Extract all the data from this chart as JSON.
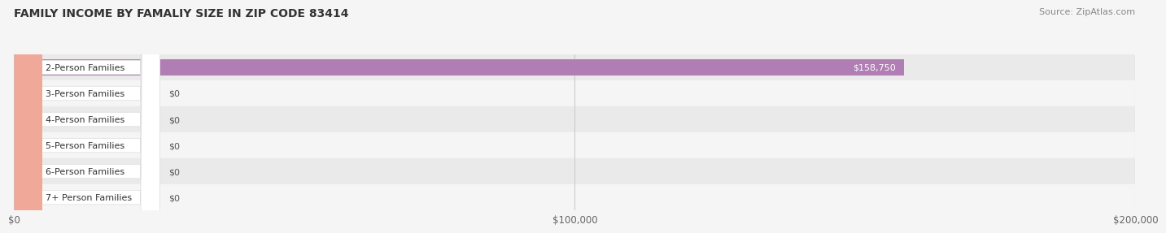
{
  "title": "FAMILY INCOME BY FAMALIY SIZE IN ZIP CODE 83414",
  "source": "Source: ZipAtlas.com",
  "categories": [
    "2-Person Families",
    "3-Person Families",
    "4-Person Families",
    "5-Person Families",
    "6-Person Families",
    "7+ Person Families"
  ],
  "values": [
    158750,
    0,
    0,
    0,
    0,
    0
  ],
  "bar_colors": [
    "#b07db5",
    "#6ec5c0",
    "#a8a8d8",
    "#f4a0b5",
    "#f5c98a",
    "#f0a898"
  ],
  "xlim": [
    0,
    200000
  ],
  "xticks": [
    0,
    100000,
    200000
  ],
  "xtick_labels": [
    "$0",
    "$100,000",
    "$200,000"
  ],
  "bar_height": 0.62,
  "background_color": "#f5f5f5",
  "title_fontsize": 10,
  "label_fontsize": 8,
  "value_fontsize": 8,
  "source_fontsize": 8
}
